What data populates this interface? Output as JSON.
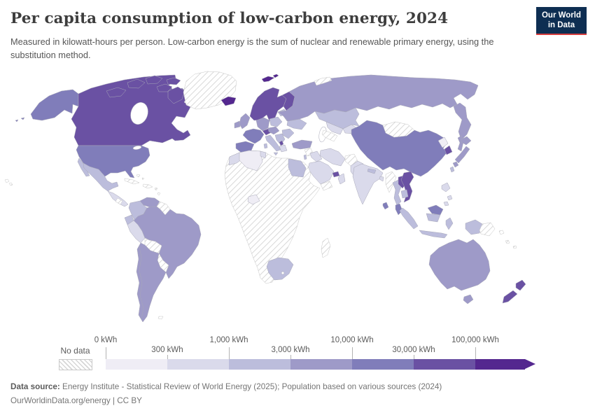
{
  "header": {
    "title": "Per capita consumption of low-carbon energy, 2024",
    "subtitle": "Measured in kilowatt-hours per person. Low-carbon energy is the sum of nuclear and renewable primary energy, using the substitution method.",
    "logo": {
      "line1": "Our World",
      "line2": "in Data",
      "bg": "#0E2E52",
      "accent": "#D73E3E"
    }
  },
  "legend": {
    "no_data_label": "No data",
    "ticks": [
      {
        "label": "0 kWh",
        "row": "top"
      },
      {
        "label": "300 kWh",
        "row": "bottom"
      },
      {
        "label": "1,000 kWh",
        "row": "top"
      },
      {
        "label": "3,000 kWh",
        "row": "bottom"
      },
      {
        "label": "10,000 kWh",
        "row": "top"
      },
      {
        "label": "30,000 kWh",
        "row": "bottom"
      },
      {
        "label": "100,000 kWh",
        "row": "top"
      }
    ],
    "bins": [
      {
        "range": "0–300 kWh",
        "color": "#efedf5"
      },
      {
        "range": "300–1,000 kWh",
        "color": "#dadaeb"
      },
      {
        "range": "1,000–3,000 kWh",
        "color": "#bcbddc"
      },
      {
        "range": "3,000–10,000 kWh",
        "color": "#9e9ac8"
      },
      {
        "range": "10,000–30,000 kWh",
        "color": "#807dba"
      },
      {
        "range": "30,000–100,000 kWh",
        "color": "#6a51a3"
      },
      {
        "range": "100,000+ kWh",
        "color": "#54278f"
      }
    ]
  },
  "footer": {
    "source_label": "Data source:",
    "source_text": " Energy Institute - Statistical Review of World Energy (2025); Population based on various sources (2024)",
    "license_line": "OurWorldinData.org/energy | CC BY"
  },
  "map": {
    "palette": {
      "c1": "#efedf5",
      "c2": "#dadaeb",
      "c3": "#bcbddc",
      "c4": "#9e9ac8",
      "c5": "#807dba",
      "c6": "#6a51a3",
      "c7": "#54278f"
    },
    "regions": {
      "alaska": "c5",
      "canada": "c6",
      "arctic-islands": "c6",
      "greenland": "nd",
      "usa": "c5",
      "mexico": "c3",
      "baja": "c3",
      "central-america": "c2",
      "nicaragua": "nd",
      "cuba": "nd",
      "hispaniola": "nd",
      "bahamas": "nd",
      "antilles": "nd",
      "hawaii": "nd",
      "aleutians": "c5",
      "venezuela": "c4",
      "colombia": "c3",
      "guyanas": "nd",
      "ecuador": "c3",
      "peru": "c2",
      "brazil": "c4",
      "bolivia": "nd",
      "paraguay": "nd",
      "argentina-chile": "c4",
      "falklands": "nd",
      "iceland": "c7",
      "svalbard": "c7",
      "norway-sweden": "c6",
      "finland": "c6",
      "denmark": "c4",
      "uk": "c4",
      "ireland": "c4",
      "france": "c5",
      "iberia": "c5",
      "germany": "c4",
      "poland": "c3",
      "alps": "c6",
      "italy": "c3",
      "sicily": "c3",
      "sardinia": "c3",
      "czech-hungary": "c4",
      "balkans": "c3",
      "albania": "c6",
      "greece": "c2",
      "romania-bulgaria": "c3",
      "baltics": "c3",
      "belarus": "c3",
      "ukraine": "c3",
      "russia": "c4",
      "kamchatka": "c4",
      "sakhalin": "c4",
      "novaya-zemlya": "nd",
      "kazakhstan": "c3",
      "uzbekistan": "c2",
      "turkmenistan": "nd",
      "kyrgyz-tajik": "c2",
      "turkey": "c4",
      "syria": "nd",
      "levant": "c3",
      "iraq": "c2",
      "iran": "c2",
      "afghanistan": "nd",
      "pakistan": "c2",
      "saudi-arabia": "c2",
      "uae": "c6",
      "oman": "c2",
      "yemen": "nd",
      "africa": "nd",
      "morocco": "c2",
      "algeria": "c1",
      "tunisia": "c2",
      "egypt": "c3",
      "west-africa": "c1",
      "south-africa": "c3",
      "madagascar": "nd",
      "mongolia": "nd",
      "china": "c5",
      "north-korea": "c1",
      "south-korea": "c6",
      "hokkaido": "c4",
      "honshu": "c4",
      "kyushu": "c4",
      "taiwan": "c3",
      "india": "c2",
      "nepal": "c3",
      "bangladesh": "c2",
      "sri-lanka": "c5",
      "myanmar": "nd",
      "thailand": "c3",
      "laos": "c6",
      "vietnam": "c6",
      "cambodia": "c3",
      "malaysia": "c5",
      "sumatra": "c3",
      "borneo-malaysia": "c5",
      "borneo-indonesia": "c3",
      "java": "c3",
      "sulawesi": "c3",
      "philippines": "c2",
      "philippines-south": "c2",
      "new-guinea-west": "c3",
      "papua-new-guinea": "nd",
      "pacific-islands": "nd",
      "australia": "c4",
      "tasmania": "c4",
      "new-zealand-north": "c6",
      "new-zealand-south": "c6"
    }
  },
  "chart_data": {
    "type": "choropleth-map",
    "title": "Per capita consumption of low-carbon energy, 2024",
    "subtitle": "Measured in kilowatt-hours per person. Low-carbon energy is the sum of nuclear and renewable primary energy, using the substitution method.",
    "unit": "kilowatt-hours per person",
    "year": 2024,
    "scale": "logarithmic bins",
    "legend_position": "bottom",
    "bins": [
      {
        "min": 0,
        "max": 300,
        "color": "#efedf5"
      },
      {
        "min": 300,
        "max": 1000,
        "color": "#dadaeb"
      },
      {
        "min": 1000,
        "max": 3000,
        "color": "#bcbddc"
      },
      {
        "min": 3000,
        "max": 10000,
        "color": "#9e9ac8"
      },
      {
        "min": 10000,
        "max": 30000,
        "color": "#807dba"
      },
      {
        "min": 30000,
        "max": 100000,
        "color": "#6a51a3"
      },
      {
        "min": 100000,
        "max": null,
        "color": "#54278f"
      }
    ],
    "no_data": {
      "label": "No data",
      "style": "diagonal-hatch"
    },
    "regions_by_bin": {
      "100,000+ kWh": [
        "Iceland"
      ],
      "30,000-100,000 kWh": [
        "Canada",
        "Norway",
        "Sweden",
        "Finland",
        "South Korea",
        "New Zealand",
        "United Arab Emirates",
        "Switzerland/Austria",
        "Laos",
        "Vietnam",
        "Albania"
      ],
      "10,000-30,000 kWh": [
        "United States",
        "France",
        "Spain",
        "Portugal",
        "China",
        "Malaysia",
        "Sri Lanka"
      ],
      "3,000-10,000 kWh": [
        "Russia",
        "Germany",
        "United Kingdom",
        "Denmark",
        "Turkey",
        "Brazil",
        "Venezuela",
        "Argentina",
        "Chile",
        "Japan",
        "Australia"
      ],
      "1,000-3,000 kWh": [
        "Mexico",
        "Colombia",
        "Ecuador",
        "Egypt",
        "South Africa",
        "Kazakhstan",
        "Ukraine",
        "Poland",
        "Italy",
        "Thailand",
        "Indonesia",
        "Nepal",
        "Taiwan"
      ],
      "300-1,000 kWh": [
        "India",
        "Pakistan",
        "Iran",
        "Iraq",
        "Saudi Arabia",
        "Oman",
        "Peru",
        "Philippines",
        "Greece",
        "Morocco",
        "Uzbekistan"
      ],
      "0-300 kWh": [
        "Algeria",
        "North Korea",
        "Ghana/Cote d'Ivoire"
      ],
      "No data": [
        "Greenland",
        "Mongolia",
        "Bolivia",
        "Paraguay",
        "Guyana/Suriname",
        "Cuba",
        "Most of Sub-Saharan Africa",
        "Madagascar",
        "Myanmar",
        "Afghanistan",
        "Turkmenistan",
        "Syria",
        "Yemen",
        "Papua New Guinea",
        "Pacific islands"
      ]
    }
  }
}
